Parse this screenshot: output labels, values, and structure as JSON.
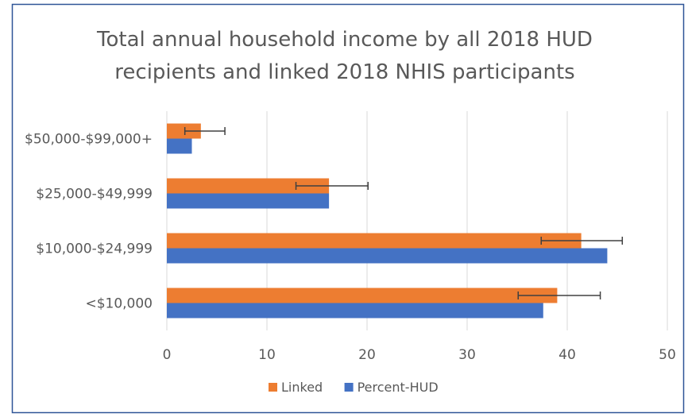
{
  "chart_data": {
    "type": "bar",
    "orientation": "horizontal",
    "title_lines": [
      "Total annual household income by all 2018 HUD",
      "recipients and linked 2018 NHIS participants"
    ],
    "categories": [
      "$50,000-$99,000+",
      "$25,000-$49,999",
      "$10,000-$24,999",
      "<$10,000"
    ],
    "series": [
      {
        "name": "Linked",
        "color": "#ED7D31",
        "values": [
          3.4,
          16.2,
          41.4,
          39.0
        ],
        "error_low": [
          1.8,
          12.9,
          37.4,
          35.1
        ],
        "error_high": [
          5.8,
          20.1,
          45.5,
          43.3
        ]
      },
      {
        "name": "Percent-HUD",
        "color": "#4472C4",
        "values": [
          2.5,
          16.2,
          44.0,
          37.6
        ]
      }
    ],
    "xlim": [
      0,
      50
    ],
    "xticks": [
      "0",
      "10",
      "20",
      "30",
      "40",
      "50"
    ],
    "grid": "vertical",
    "legend_position": "bottom"
  }
}
